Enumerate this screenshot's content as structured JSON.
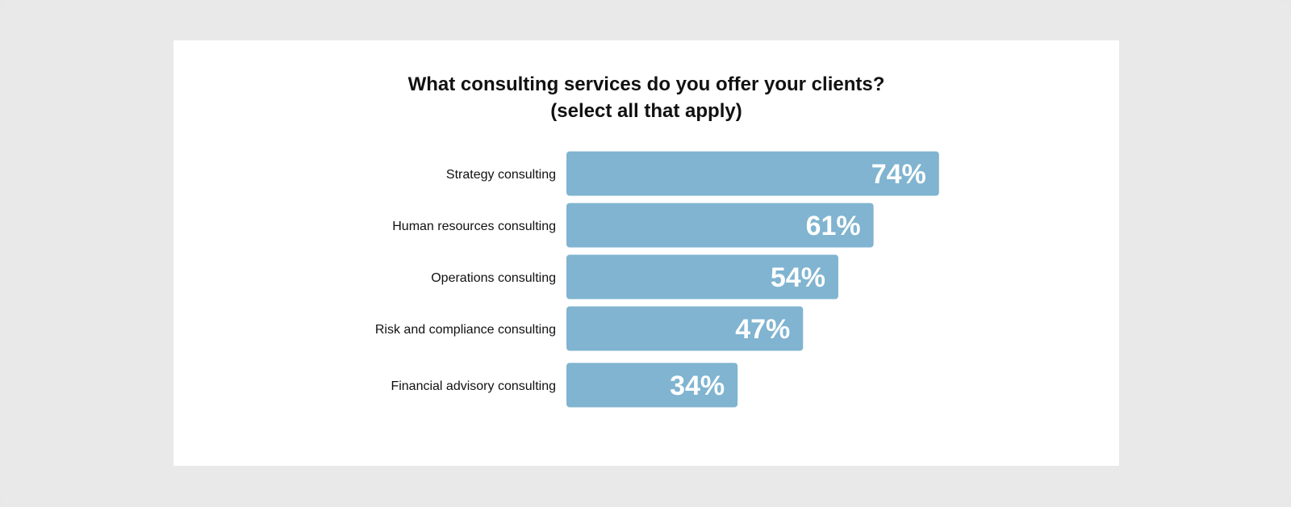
{
  "chart_data": {
    "type": "bar",
    "orientation": "horizontal",
    "title": "What consulting services do you offer your clients?",
    "subtitle": "(select all that apply)",
    "categories": [
      "Strategy consulting",
      "Human resources consulting",
      "Operations consulting",
      "Risk and compliance consulting",
      "Financial advisory consulting"
    ],
    "values": [
      74,
      61,
      54,
      47,
      34
    ],
    "value_labels": [
      "74%",
      "61%",
      "54%",
      "47%",
      "34%"
    ],
    "unit": "%",
    "xlim": [
      0,
      100
    ],
    "grid": false,
    "legend": "none",
    "colors": {
      "bar": "#80b4d0",
      "value_text": "#ffffff",
      "label_text": "#111111",
      "card": "#ffffff",
      "background": "#e9e9e9"
    }
  }
}
